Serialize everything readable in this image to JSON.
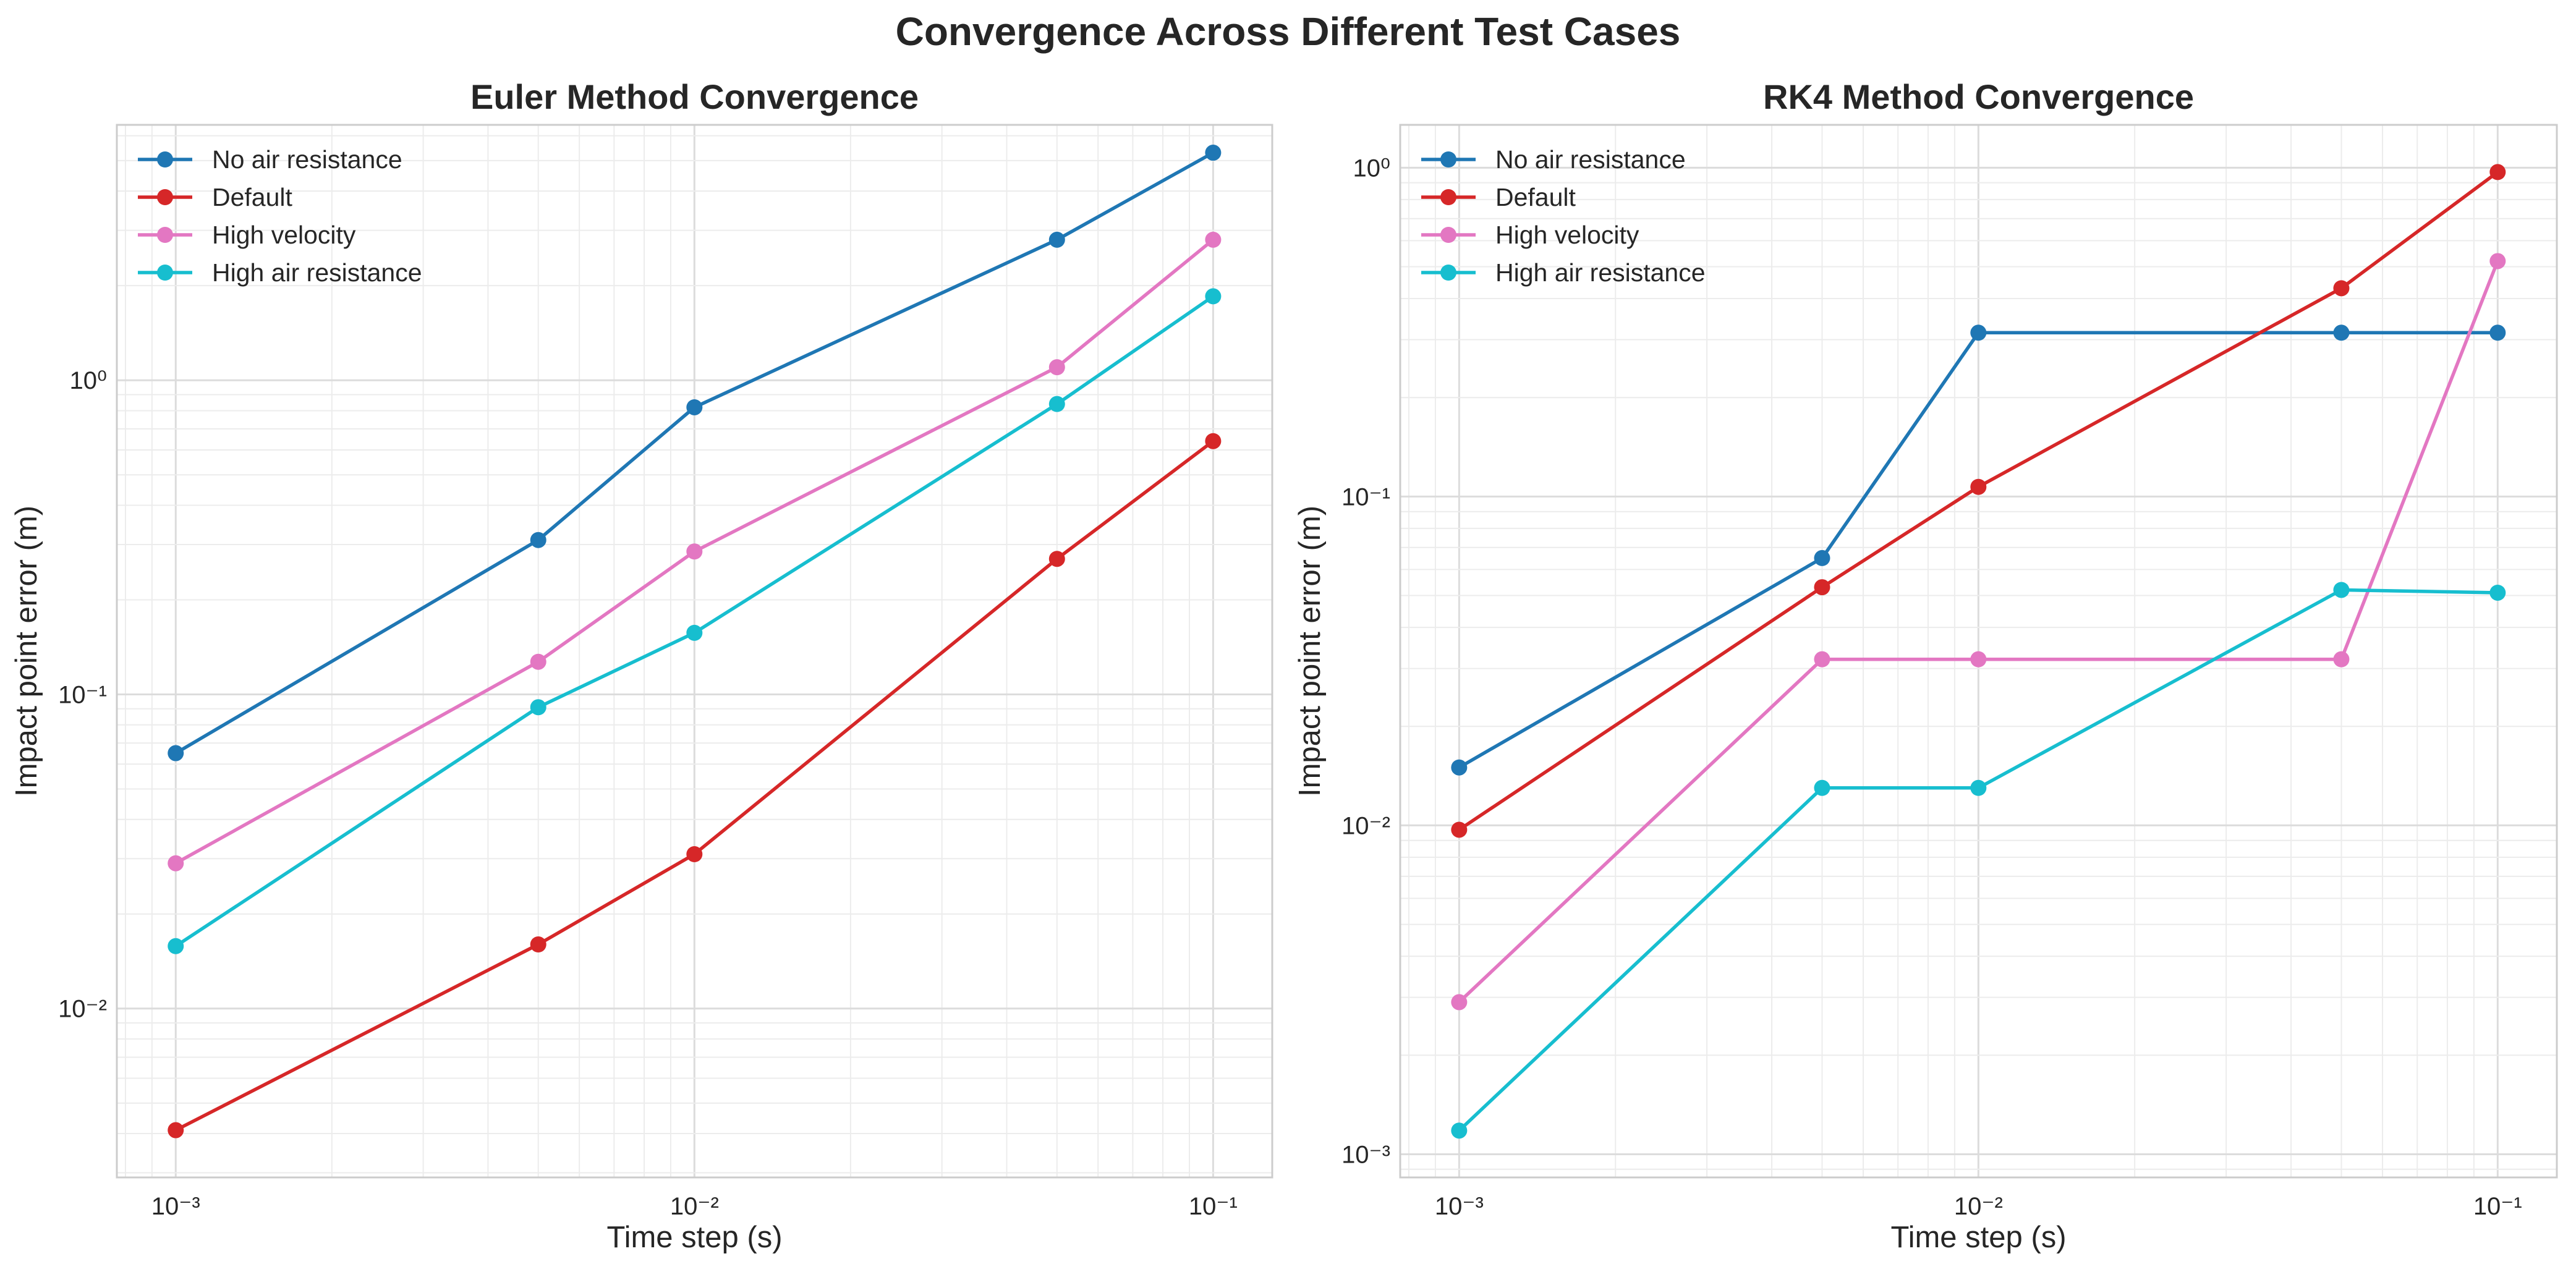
{
  "figure": {
    "title": "Convergence Across Different Test Cases"
  },
  "chart_data": [
    {
      "type": "line",
      "title": "Euler Method Convergence",
      "xlabel": "Time step (s)",
      "ylabel": "Impact point error (m)",
      "xscale": "log",
      "yscale": "log",
      "xlim": [
        0.00077,
        0.13
      ],
      "ylim": [
        0.0029,
        6.5
      ],
      "xticks": [
        0.001,
        0.01,
        0.1
      ],
      "xtick_labels": [
        "10⁻³",
        "10⁻²",
        "10⁻¹"
      ],
      "yticks": [
        0.01,
        0.1,
        1
      ],
      "ytick_labels": [
        "10⁻²",
        "10⁻¹",
        "10⁰"
      ],
      "grid": true,
      "legend_position": "top-left",
      "x": [
        0.001,
        0.005,
        0.01,
        0.05,
        0.1
      ],
      "series": [
        {
          "name": "No air resistance",
          "color": "#1f77b4",
          "values": [
            0.065,
            0.31,
            0.82,
            2.8,
            5.3
          ]
        },
        {
          "name": "Default",
          "color": "#d62728",
          "values": [
            0.0041,
            0.016,
            0.031,
            0.27,
            0.64
          ]
        },
        {
          "name": "High velocity",
          "color": "#e377c2",
          "values": [
            0.029,
            0.127,
            0.285,
            1.1,
            2.8
          ]
        },
        {
          "name": "High air resistance",
          "color": "#17becf",
          "values": [
            0.0158,
            0.091,
            0.157,
            0.84,
            1.85
          ]
        }
      ]
    },
    {
      "type": "line",
      "title": "RK4 Method Convergence",
      "xlabel": "Time step (s)",
      "ylabel": "Impact point error (m)",
      "xscale": "log",
      "yscale": "log",
      "xlim": [
        0.00077,
        0.13
      ],
      "ylim": [
        0.00085,
        1.35
      ],
      "xticks": [
        0.001,
        0.01,
        0.1
      ],
      "xtick_labels": [
        "10⁻³",
        "10⁻²",
        "10⁻¹"
      ],
      "yticks": [
        0.001,
        0.01,
        0.1,
        1
      ],
      "ytick_labels": [
        "10⁻³",
        "10⁻²",
        "10⁻¹",
        "10⁰"
      ],
      "grid": true,
      "legend_position": "top-left",
      "x": [
        0.001,
        0.005,
        0.01,
        0.05,
        0.1
      ],
      "series": [
        {
          "name": "No air resistance",
          "color": "#1f77b4",
          "values": [
            0.015,
            0.065,
            0.315,
            0.315,
            0.315
          ]
        },
        {
          "name": "Default",
          "color": "#d62728",
          "values": [
            0.0097,
            0.053,
            0.107,
            0.43,
            0.97
          ]
        },
        {
          "name": "High velocity",
          "color": "#e377c2",
          "values": [
            0.0029,
            0.032,
            0.032,
            0.032,
            0.52
          ]
        },
        {
          "name": "High air resistance",
          "color": "#17becf",
          "values": [
            0.00118,
            0.013,
            0.013,
            0.052,
            0.051
          ]
        }
      ]
    }
  ]
}
